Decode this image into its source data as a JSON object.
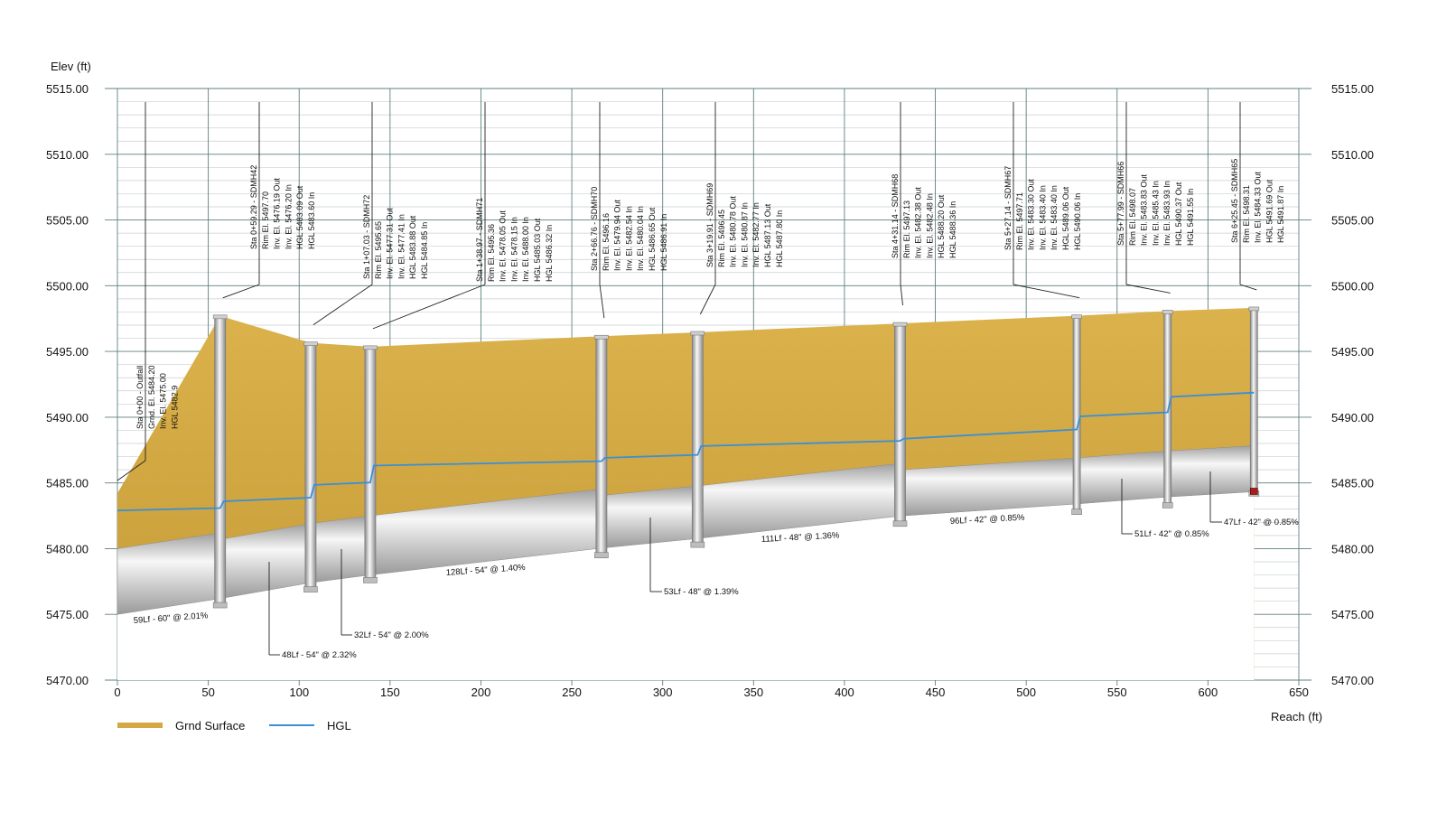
{
  "chart_data": {
    "type": "profile",
    "title": "",
    "xlabel": "Reach (ft)",
    "ylabel": "Elev (ft)",
    "xlim": [
      0,
      650
    ],
    "ylim": [
      5470,
      5515
    ],
    "x_ticks": [
      "0",
      "50",
      "100",
      "150",
      "200",
      "250",
      "300",
      "350",
      "400",
      "450",
      "500",
      "550",
      "600",
      "650"
    ],
    "y_ticks": [
      "5470.00",
      "5475.00",
      "5480.00",
      "5485.00",
      "5490.00",
      "5495.00",
      "5500.00",
      "5505.00",
      "5510.00",
      "5515.00"
    ],
    "grid": true,
    "legend": {
      "position": "bottom-left",
      "entries": [
        {
          "label": "Grnd Surface",
          "color": "#d4a843"
        },
        {
          "label": "HGL",
          "color": "#3a8fd6"
        }
      ]
    },
    "colors": {
      "ground": "#d4a843",
      "hgl": "#3a8fd6",
      "pipe_light": "#f6f6f6",
      "pipe_dark": "#9c9c9c",
      "grid_major": "#5f7f7f",
      "grid_minor": "#c9cfcf"
    },
    "ground_surface": {
      "x": [
        0,
        56.5,
        106.3,
        139.1,
        266.3,
        319.2,
        430.6,
        527.8,
        577.8,
        625.3
      ],
      "y": [
        5484.2,
        5497.7,
        5495.65,
        5495.36,
        5496.16,
        5496.45,
        5497.13,
        5497.71,
        5498.07,
        5498.31
      ]
    },
    "hgl": {
      "x": [
        0,
        56.5,
        58.5,
        106.3,
        108.3,
        139.1,
        141.1,
        266.3,
        268.3,
        319.2,
        321.2,
        430.6,
        432.6,
        527.8,
        529.8,
        577.8,
        579.8,
        625.3
      ],
      "y": [
        5482.9,
        5483.09,
        5483.6,
        5483.88,
        5484.85,
        5485.03,
        5486.32,
        5486.65,
        5486.91,
        5487.13,
        5487.8,
        5488.2,
        5488.36,
        5489.06,
        5490.06,
        5490.37,
        5491.55,
        5491.87
      ]
    },
    "pipe_invert": {
      "x": [
        0,
        56.5,
        106.3,
        139.1,
        266.3,
        319.2,
        430.6,
        527.8,
        577.8,
        625.3
      ],
      "y": [
        5475.0,
        5476.2,
        5477.41,
        5478.0,
        5480.04,
        5480.77,
        5482.48,
        5483.4,
        5483.93,
        5484.33
      ]
    },
    "pipe_diameters_ft": [
      5.0,
      4.5,
      4.5,
      4.5,
      4.0,
      4.0,
      3.5,
      3.5,
      3.5
    ],
    "structures": [
      {
        "x": 0,
        "rim": 5484.2,
        "bottom": 5475.0,
        "width": 0,
        "labels": [
          "Sta 0+00 - Outfall",
          "Grnd. El. 5484.20",
          "Inv. El. 5475.00",
          "HGL 5482.9"
        ]
      },
      {
        "x": 56.5,
        "rim": 5497.7,
        "bottom": 5475.7,
        "width": 6,
        "labels": [
          "Sta 0+59.29 - SDMH42",
          "Rim El. 5497.70",
          "Inv. El. 5476.19 Out",
          "Inv. El. 5476.20 In",
          "HGL 5483.09 Out",
          "HGL 5483.60 In"
        ]
      },
      {
        "x": 106.3,
        "rim": 5495.65,
        "bottom": 5476.9,
        "width": 6,
        "labels": [
          "Sta 1+07.03 - SDMH72",
          "Rim El. 5495.65",
          "Inv. El. 5477.31 Out",
          "Inv. El. 5477.41 In",
          "HGL 5483.88 Out",
          "HGL 5484.85 In"
        ]
      },
      {
        "x": 139.1,
        "rim": 5495.36,
        "bottom": 5477.6,
        "width": 6,
        "labels": [
          "Sta 1+38.97 - SDMH71",
          "Rim El. 5495.36",
          "Inv. El. 5478.05 Out",
          "Inv. El. 5478.15 In",
          "Inv. El. 5488.00 In",
          "HGL 5485.03 Out",
          "HGL 5486.32 In"
        ]
      },
      {
        "x": 266.3,
        "rim": 5496.16,
        "bottom": 5479.5,
        "width": 6,
        "labels": [
          "Sta 2+66.76 - SDMH70",
          "Rim El. 5496.16",
          "Inv. El. 5479.94 Out",
          "Inv. El. 5482.54 In",
          "Inv. El. 5480.04 In",
          "HGL 5486.65 Out",
          "HGL 5486.91 In"
        ]
      },
      {
        "x": 319.2,
        "rim": 5496.45,
        "bottom": 5480.3,
        "width": 6,
        "labels": [
          "Sta 3+19.91 - SDMH69",
          "Rim El. 5496.45",
          "Inv. El. 5480.78 Out",
          "Inv. El. 5480.87 In",
          "Inv. El. 5482.77 In",
          "HGL 5487.13 Out",
          "HGL 5487.80 In"
        ]
      },
      {
        "x": 430.6,
        "rim": 5497.13,
        "bottom": 5481.9,
        "width": 6,
        "labels": [
          "Sta 4+31.14 - SDMH68",
          "Rim El. 5497.13",
          "Inv. El. 5482.38 Out",
          "Inv. El. 5482.48 In",
          "HGL 5488.20 Out",
          "HGL 5488.36 In"
        ]
      },
      {
        "x": 527.8,
        "rim": 5497.71,
        "bottom": 5482.8,
        "width": 4,
        "labels": [
          "Sta 5+27.14 - SDMH67",
          "Rim El. 5497.71",
          "Inv. El. 5483.30 Out",
          "Inv. El. 5483.40 In",
          "Inv. El. 5483.40 In",
          "HGL 5489.06 Out",
          "HGL 5490.06 In"
        ]
      },
      {
        "x": 577.8,
        "rim": 5498.07,
        "bottom": 5483.3,
        "width": 4,
        "labels": [
          "Sta 5+77.99 - SDMH66",
          "Rim El. 5498.07",
          "Inv. El. 5483.83 Out",
          "Inv. El. 5485.43 In",
          "Inv. El. 5483.93 In",
          "HGL 5490.37 Out",
          "HGL 5491.55 In"
        ]
      },
      {
        "x": 625.3,
        "rim": 5498.31,
        "bottom": 5484.2,
        "width": 4,
        "labels": [
          "Sta 6+25.45 - SDMH65",
          "Rim El. 5498.31",
          "Inv. El. 5484.33 Out",
          "HGL 5491.69 Out",
          "HGL 5491.87 In"
        ]
      }
    ],
    "pipe_labels": [
      "59Lf - 60\" @ 2.01%",
      "48Lf - 54\" @ 2.32%",
      "32Lf - 54\" @ 2.00%",
      "128Lf - 54\" @ 1.40%",
      "53Lf - 48\" @ 1.39%",
      "111Lf - 48\" @ 1.36%",
      "96Lf - 42\" @ 0.85%",
      "51Lf - 42\" @ 0.85%",
      "47Lf - 42\" @ 0.85%"
    ]
  }
}
